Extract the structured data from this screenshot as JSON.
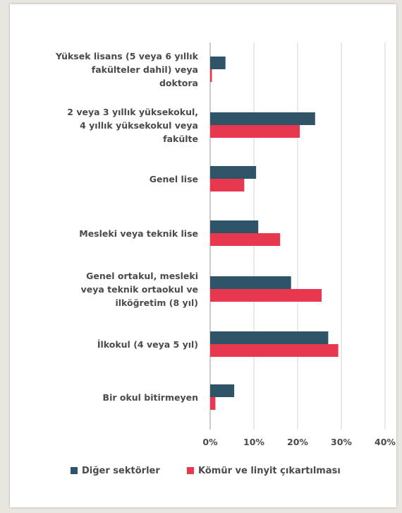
{
  "chart_data": {
    "type": "bar",
    "orientation": "horizontal",
    "categories": [
      [
        "Yüksek lisans (5 veya 6 yıllık",
        "fakülteler dahil) veya",
        "doktora"
      ],
      [
        "2 veya 3 yıllık yüksekokul,",
        "4 yıllık yüksekokul veya",
        "fakülte"
      ],
      [
        "Genel lise"
      ],
      [
        "Mesleki veya teknik lise"
      ],
      [
        "Genel ortakul, mesleki",
        "veya teknik ortaokul ve",
        "ilköğretim (8 yıl)"
      ],
      [
        "İlkokul (4 veya 5 yıl)"
      ],
      [
        "Bir okul bitirmeyen"
      ]
    ],
    "series": [
      {
        "name": "Diğer sektörler",
        "color": "#2f5468",
        "values": [
          3.5,
          24,
          10.5,
          11,
          18.5,
          27,
          5.5
        ]
      },
      {
        "name": "Kömür ve linyit çıkartılması",
        "color": "#e8384f",
        "values": [
          0.4,
          20.5,
          7.8,
          16,
          25.5,
          29.3,
          1.2
        ]
      }
    ],
    "xlim": [
      0,
      40
    ],
    "xticks": [
      "0%",
      "10%",
      "20%",
      "30%",
      "40%"
    ],
    "grid": true,
    "legend_position": "bottom",
    "title": "",
    "xlabel": "",
    "ylabel": ""
  }
}
